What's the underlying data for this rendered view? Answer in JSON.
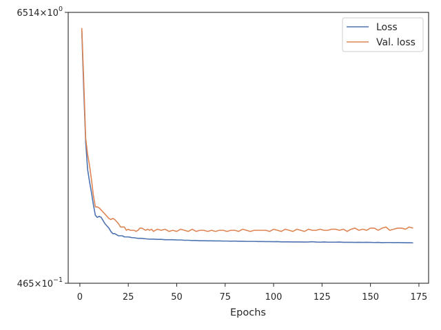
{
  "chart_data": {
    "type": "line",
    "title": "",
    "xlabel": "Epochs",
    "ylabel": "",
    "y_scale": "log",
    "xlim": [
      -6,
      180
    ],
    "x_ticks": [
      0,
      25,
      50,
      75,
      100,
      125,
      150,
      175
    ],
    "ylim": [
      0.3465,
      0.6514
    ],
    "y_tick_labels": [
      {
        "mantissa": "6514",
        "base": "10",
        "exp": "0"
      },
      {
        "mantissa": "465",
        "base": "10",
        "exp": "−1"
      }
    ],
    "legend": {
      "position": "top-right",
      "entries": [
        "Loss",
        "Val. loss"
      ]
    },
    "grid": false,
    "colors": {
      "Loss": "#4c72b0",
      "Val. loss": "#dd8452",
      "axis": "#262626"
    },
    "series": [
      {
        "name": "Loss",
        "x": [
          1,
          2,
          3,
          4,
          5,
          6,
          7,
          8,
          9,
          10,
          11,
          12,
          13,
          14,
          15,
          16,
          17,
          18,
          19,
          20,
          21,
          22,
          23,
          24,
          25,
          26,
          27,
          28,
          29,
          30,
          32,
          34,
          36,
          38,
          40,
          42,
          44,
          46,
          48,
          50,
          52,
          54,
          56,
          58,
          60,
          62,
          64,
          66,
          68,
          70,
          72,
          74,
          76,
          78,
          80,
          82,
          84,
          86,
          88,
          90,
          92,
          94,
          96,
          98,
          100,
          102,
          104,
          106,
          108,
          110,
          112,
          114,
          116,
          118,
          120,
          122,
          124,
          126,
          128,
          130,
          132,
          134,
          136,
          138,
          140,
          142,
          144,
          146,
          148,
          150,
          152,
          154,
          156,
          158,
          160,
          162,
          164,
          166,
          168,
          170,
          172
        ],
        "y": [
          0.625,
          0.545,
          0.482,
          0.452,
          0.439,
          0.428,
          0.416,
          0.406,
          0.404,
          0.405,
          0.404,
          0.401,
          0.398,
          0.396,
          0.394,
          0.391,
          0.389,
          0.389,
          0.388,
          0.387,
          0.387,
          0.387,
          0.386,
          0.386,
          0.386,
          0.3857,
          0.3853,
          0.3853,
          0.385,
          0.3847,
          0.3847,
          0.3843,
          0.384,
          0.384,
          0.3838,
          0.3838,
          0.3835,
          0.3835,
          0.3835,
          0.3833,
          0.3833,
          0.383,
          0.383,
          0.3828,
          0.3828,
          0.3826,
          0.3826,
          0.3825,
          0.3825,
          0.3824,
          0.3824,
          0.3823,
          0.3823,
          0.3822,
          0.3823,
          0.3821,
          0.3821,
          0.382,
          0.382,
          0.382,
          0.3819,
          0.3819,
          0.3818,
          0.3818,
          0.3817,
          0.3818,
          0.3816,
          0.3816,
          0.3816,
          0.3815,
          0.3815,
          0.3815,
          0.3814,
          0.3815,
          0.3817,
          0.3814,
          0.3813,
          0.3815,
          0.3813,
          0.3813,
          0.3813,
          0.3814,
          0.3812,
          0.3812,
          0.3812,
          0.3811,
          0.3812,
          0.3811,
          0.3812,
          0.3811,
          0.381,
          0.3811,
          0.3809,
          0.381,
          0.381,
          0.3809,
          0.381,
          0.3809,
          0.3808,
          0.3808,
          0.3807
        ]
      },
      {
        "name": "Val. loss",
        "x": [
          1,
          2,
          3,
          4,
          5,
          6,
          7,
          8,
          9,
          10,
          11,
          12,
          13,
          14,
          15,
          16,
          17,
          18,
          19,
          20,
          21,
          22,
          23,
          24,
          25,
          26,
          27,
          28,
          29,
          30,
          31,
          32,
          33,
          34,
          35,
          36,
          37,
          38,
          39,
          40,
          42,
          44,
          46,
          48,
          50,
          52,
          54,
          56,
          58,
          60,
          62,
          64,
          66,
          68,
          70,
          72,
          74,
          76,
          78,
          80,
          82,
          84,
          86,
          88,
          90,
          92,
          94,
          96,
          98,
          100,
          102,
          104,
          106,
          108,
          110,
          112,
          114,
          116,
          118,
          120,
          122,
          124,
          126,
          128,
          130,
          132,
          134,
          136,
          138,
          140,
          142,
          144,
          146,
          148,
          150,
          152,
          154,
          156,
          158,
          160,
          162,
          164,
          166,
          168,
          170,
          172
        ],
        "y": [
          0.628,
          0.556,
          0.486,
          0.468,
          0.456,
          0.441,
          0.425,
          0.414,
          0.414,
          0.413,
          0.411,
          0.409,
          0.407,
          0.405,
          0.403,
          0.402,
          0.403,
          0.402,
          0.4,
          0.398,
          0.395,
          0.395,
          0.395,
          0.392,
          0.393,
          0.392,
          0.392,
          0.392,
          0.391,
          0.392,
          0.394,
          0.394,
          0.393,
          0.392,
          0.393,
          0.392,
          0.393,
          0.391,
          0.392,
          0.393,
          0.392,
          0.393,
          0.391,
          0.392,
          0.391,
          0.393,
          0.392,
          0.391,
          0.393,
          0.391,
          0.392,
          0.392,
          0.391,
          0.392,
          0.391,
          0.392,
          0.392,
          0.391,
          0.392,
          0.392,
          0.391,
          0.393,
          0.392,
          0.391,
          0.392,
          0.392,
          0.392,
          0.392,
          0.391,
          0.393,
          0.392,
          0.391,
          0.393,
          0.392,
          0.391,
          0.393,
          0.392,
          0.391,
          0.393,
          0.392,
          0.392,
          0.393,
          0.392,
          0.392,
          0.393,
          0.393,
          0.392,
          0.393,
          0.391,
          0.393,
          0.394,
          0.392,
          0.393,
          0.392,
          0.394,
          0.394,
          0.392,
          0.394,
          0.395,
          0.392,
          0.393,
          0.394,
          0.394,
          0.393,
          0.395,
          0.394
        ]
      }
    ]
  }
}
